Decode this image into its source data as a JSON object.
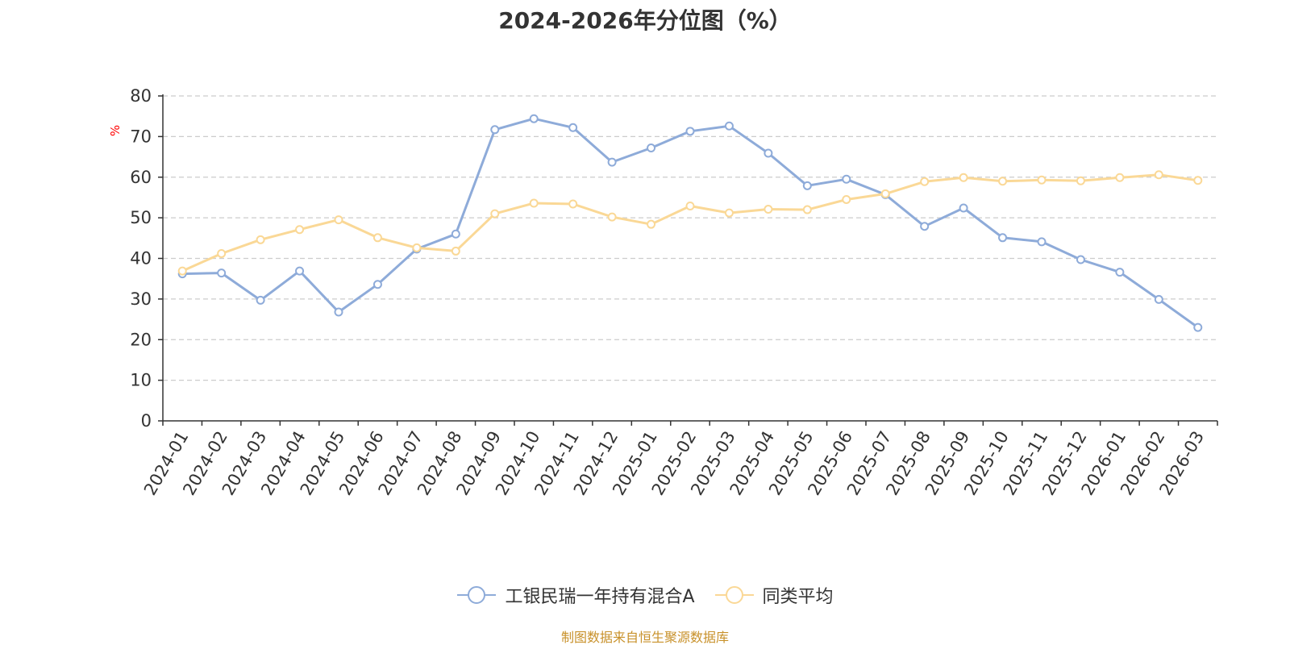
{
  "chart_data": {
    "type": "line",
    "title": "2024-2026年分位图（%）",
    "ylabel": "%",
    "xlabel": "",
    "ylim": [
      0,
      80
    ],
    "yticks": [
      0,
      10,
      20,
      30,
      40,
      50,
      60,
      70,
      80
    ],
    "grid": true,
    "legend_position": "bottom",
    "categories": [
      "2024-01",
      "2024-02",
      "2024-03",
      "2024-04",
      "2024-05",
      "2024-06",
      "2024-07",
      "2024-08",
      "2024-09",
      "2024-10",
      "2024-11",
      "2024-12",
      "2025-01",
      "2025-02",
      "2025-03",
      "2025-04",
      "2025-05",
      "2025-06",
      "2025-07",
      "2025-08",
      "2025-09",
      "2025-10",
      "2025-11",
      "2025-12",
      "2026-01",
      "2026-02",
      "2026-03"
    ],
    "series": [
      {
        "name": "工银民瑞一年持有混合A",
        "color": "#8eabd9",
        "values": [
          36.2,
          36.4,
          29.7,
          36.9,
          26.8,
          33.6,
          42.3,
          46.0,
          71.7,
          74.4,
          72.2,
          63.7,
          67.2,
          71.3,
          72.6,
          65.9,
          57.9,
          59.5,
          55.7,
          47.9,
          52.4,
          45.1,
          44.1,
          39.7,
          36.6,
          29.9,
          23.0
        ]
      },
      {
        "name": "同类平均",
        "color": "#fad896",
        "values": [
          36.9,
          41.2,
          44.6,
          47.1,
          49.5,
          45.1,
          42.6,
          41.8,
          51.0,
          53.6,
          53.4,
          50.2,
          48.4,
          52.9,
          51.2,
          52.1,
          52.0,
          54.5,
          55.9,
          58.9,
          59.9,
          59.0,
          59.3,
          59.1,
          59.9,
          60.6,
          59.2
        ]
      }
    ]
  },
  "footer": {
    "source": "制图数据来自恒生聚源数据库"
  }
}
